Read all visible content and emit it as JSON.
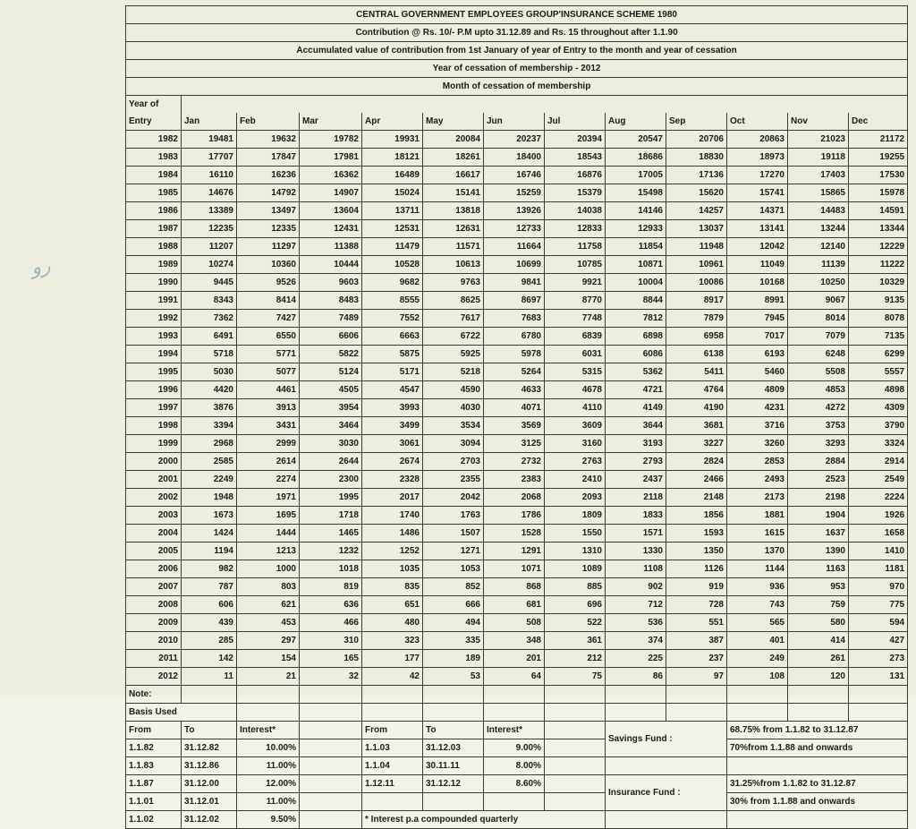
{
  "headers": {
    "h1": "CENTRAL GOVERNMENT EMPLOYEES GROUP'INSURANCE SCHEME 1980",
    "h2": "Contribution @ Rs. 10/- P.M upto 31.12.89 and Rs. 15 throughout after 1.1.90",
    "h3": "Accumulated value of contribution from 1st January of year of Entry to the month and year of cessation",
    "h4": "Year of cessation of membership - 2012",
    "h5": "Month of cessation of membership"
  },
  "yoe_label_l1": "Year of",
  "yoe_label_l2": "Entry",
  "months": [
    "Jan",
    "Feb",
    "Mar",
    "Apr",
    "May",
    "Jun",
    "Jul",
    "Aug",
    "Sep",
    "Oct",
    "Nov",
    "Dec"
  ],
  "rows": [
    {
      "year": "1982",
      "v": [
        "19481",
        "19632",
        "19782",
        "19931",
        "20084",
        "20237",
        "20394",
        "20547",
        "20706",
        "20863",
        "21023",
        "21172"
      ]
    },
    {
      "year": "1983",
      "v": [
        "17707",
        "17847",
        "17981",
        "18121",
        "18261",
        "18400",
        "18543",
        "18686",
        "18830",
        "18973",
        "19118",
        "19255"
      ]
    },
    {
      "year": "1984",
      "v": [
        "16110",
        "16236",
        "16362",
        "16489",
        "16617",
        "16746",
        "16876",
        "17005",
        "17136",
        "17270",
        "17403",
        "17530"
      ]
    },
    {
      "year": "1985",
      "v": [
        "14676",
        "14792",
        "14907",
        "15024",
        "15141",
        "15259",
        "15379",
        "15498",
        "15620",
        "15741",
        "15865",
        "15978"
      ]
    },
    {
      "year": "1986",
      "v": [
        "13389",
        "13497",
        "13604",
        "13711",
        "13818",
        "13926",
        "14038",
        "14146",
        "14257",
        "14371",
        "14483",
        "14591"
      ]
    },
    {
      "year": "1987",
      "v": [
        "12235",
        "12335",
        "12431",
        "12531",
        "12631",
        "12733",
        "12833",
        "12933",
        "13037",
        "13141",
        "13244",
        "13344"
      ]
    },
    {
      "year": "1988",
      "v": [
        "11207",
        "11297",
        "11388",
        "11479",
        "11571",
        "11664",
        "11758",
        "11854",
        "11948",
        "12042",
        "12140",
        "12229"
      ]
    },
    {
      "year": "1989",
      "v": [
        "10274",
        "10360",
        "10444",
        "10528",
        "10613",
        "10699",
        "10785",
        "10871",
        "10961",
        "11049",
        "11139",
        "11222"
      ]
    },
    {
      "year": "1990",
      "v": [
        "9445",
        "9526",
        "9603",
        "9682",
        "9763",
        "9841",
        "9921",
        "10004",
        "10086",
        "10168",
        "10250",
        "10329"
      ]
    },
    {
      "year": "1991",
      "v": [
        "8343",
        "8414",
        "8483",
        "8555",
        "8625",
        "8697",
        "8770",
        "8844",
        "8917",
        "8991",
        "9067",
        "9135"
      ]
    },
    {
      "year": "1992",
      "v": [
        "7362",
        "7427",
        "7489",
        "7552",
        "7617",
        "7683",
        "7748",
        "7812",
        "7879",
        "7945",
        "8014",
        "8078"
      ]
    },
    {
      "year": "1993",
      "v": [
        "6491",
        "6550",
        "6606",
        "6663",
        "6722",
        "6780",
        "6839",
        "6898",
        "6958",
        "7017",
        "7079",
        "7135"
      ]
    },
    {
      "year": "1994",
      "v": [
        "5718",
        "5771",
        "5822",
        "5875",
        "5925",
        "5978",
        "6031",
        "6086",
        "6138",
        "6193",
        "6248",
        "6299"
      ]
    },
    {
      "year": "1995",
      "v": [
        "5030",
        "5077",
        "5124",
        "5171",
        "5218",
        "5264",
        "5315",
        "5362",
        "5411",
        "5460",
        "5508",
        "5557"
      ]
    },
    {
      "year": "1996",
      "v": [
        "4420",
        "4461",
        "4505",
        "4547",
        "4590",
        "4633",
        "4678",
        "4721",
        "4764",
        "4809",
        "4853",
        "4898"
      ]
    },
    {
      "year": "1997",
      "v": [
        "3876",
        "3913",
        "3954",
        "3993",
        "4030",
        "4071",
        "4110",
        "4149",
        "4190",
        "4231",
        "4272",
        "4309"
      ]
    },
    {
      "year": "1998",
      "v": [
        "3394",
        "3431",
        "3464",
        "3499",
        "3534",
        "3569",
        "3609",
        "3644",
        "3681",
        "3716",
        "3753",
        "3790"
      ]
    },
    {
      "year": "1999",
      "v": [
        "2968",
        "2999",
        "3030",
        "3061",
        "3094",
        "3125",
        "3160",
        "3193",
        "3227",
        "3260",
        "3293",
        "3324"
      ]
    },
    {
      "year": "2000",
      "v": [
        "2585",
        "2614",
        "2644",
        "2674",
        "2703",
        "2732",
        "2763",
        "2793",
        "2824",
        "2853",
        "2884",
        "2914"
      ]
    },
    {
      "year": "2001",
      "v": [
        "2249",
        "2274",
        "2300",
        "2328",
        "2355",
        "2383",
        "2410",
        "2437",
        "2466",
        "2493",
        "2523",
        "2549"
      ]
    },
    {
      "year": "2002",
      "v": [
        "1948",
        "1971",
        "1995",
        "2017",
        "2042",
        "2068",
        "2093",
        "2118",
        "2148",
        "2173",
        "2198",
        "2224"
      ]
    },
    {
      "year": "2003",
      "v": [
        "1673",
        "1695",
        "1718",
        "1740",
        "1763",
        "1786",
        "1809",
        "1833",
        "1856",
        "1881",
        "1904",
        "1926"
      ]
    },
    {
      "year": "2004",
      "v": [
        "1424",
        "1444",
        "1465",
        "1486",
        "1507",
        "1528",
        "1550",
        "1571",
        "1593",
        "1615",
        "1637",
        "1658"
      ]
    },
    {
      "year": "2005",
      "v": [
        "1194",
        "1213",
        "1232",
        "1252",
        "1271",
        "1291",
        "1310",
        "1330",
        "1350",
        "1370",
        "1390",
        "1410"
      ]
    },
    {
      "year": "2006",
      "v": [
        "982",
        "1000",
        "1018",
        "1035",
        "1053",
        "1071",
        "1089",
        "1108",
        "1126",
        "1144",
        "1163",
        "1181"
      ]
    },
    {
      "year": "2007",
      "v": [
        "787",
        "803",
        "819",
        "835",
        "852",
        "868",
        "885",
        "902",
        "919",
        "936",
        "953",
        "970"
      ]
    },
    {
      "year": "2008",
      "v": [
        "606",
        "621",
        "636",
        "651",
        "666",
        "681",
        "696",
        "712",
        "728",
        "743",
        "759",
        "775"
      ]
    },
    {
      "year": "2009",
      "v": [
        "439",
        "453",
        "466",
        "480",
        "494",
        "508",
        "522",
        "536",
        "551",
        "565",
        "580",
        "594"
      ]
    },
    {
      "year": "2010",
      "v": [
        "285",
        "297",
        "310",
        "323",
        "335",
        "348",
        "361",
        "374",
        "387",
        "401",
        "414",
        "427"
      ]
    },
    {
      "year": "2011",
      "v": [
        "142",
        "154",
        "165",
        "177",
        "189",
        "201",
        "212",
        "225",
        "237",
        "249",
        "261",
        "273"
      ]
    },
    {
      "year": "2012",
      "v": [
        "11",
        "21",
        "32",
        "42",
        "53",
        "64",
        "75",
        "86",
        "97",
        "108",
        "120",
        "131"
      ]
    }
  ],
  "notes": {
    "note_label": "Note:",
    "basis_label": "Basis Used",
    "from_lbl": "From",
    "to_lbl": "To",
    "interest_lbl": "Interest*",
    "int1": [
      {
        "from": "1.1.82",
        "to": "31.12.82",
        "i": "10.00%"
      },
      {
        "from": "1.1.83",
        "to": "31.12.86",
        "i": "11.00%"
      },
      {
        "from": "1.1.87",
        "to": "31.12.00",
        "i": "12.00%"
      },
      {
        "from": "1.1.01",
        "to": "31.12.01",
        "i": "11.00%"
      },
      {
        "from": "1.1.02",
        "to": "31.12.02",
        "i": "9.50%"
      }
    ],
    "int2": [
      {
        "from": "1.1.03",
        "to": "31.12.03",
        "i": "9.00%"
      },
      {
        "from": "1.1.04",
        "to": "30.11.11",
        "i": "8.00%"
      },
      {
        "from": "1.12.11",
        "to": "31.12.12",
        "i": "8.60%"
      }
    ],
    "footnote": "* Interest p.a compounded quarterly",
    "savings_lbl": "Savings Fund :",
    "savings1": "68.75% from 1.1.82 to 31.12.87",
    "savings2": "70%from 1.1.88 and onwards",
    "insurance_lbl": "Insurance Fund :",
    "insurance1": "31.25%from 1.1.82 to 31.12.87",
    "insurance2": "30% from 1.1.88 and onwards"
  },
  "style": {
    "bg": "#edeedd",
    "border": "#3a3a3a",
    "text": "#1a1a1a"
  }
}
